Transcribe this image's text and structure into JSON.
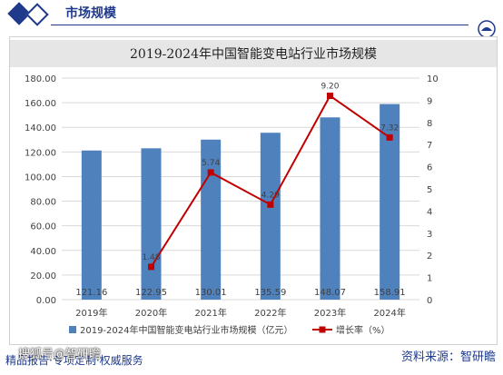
{
  "header": {
    "title": "市场规模"
  },
  "chart_data": {
    "type": "bar",
    "title": "2019-2024年中国智能变电站行业市场规模",
    "categories": [
      "2019年",
      "2020年",
      "2021年",
      "2022年",
      "2023年",
      "2024年"
    ],
    "series": [
      {
        "name": "2019-2024年中国智能变电站行业市场规模（亿元）",
        "type": "bar",
        "axis": "left",
        "values": [
          121.16,
          122.95,
          130.01,
          135.59,
          148.07,
          158.91
        ],
        "labels": [
          "121.16",
          "122.95",
          "130.01",
          "135.59",
          "148.07",
          "158.91"
        ],
        "color": "#4f81bd"
      },
      {
        "name": "增长率（%）",
        "type": "line",
        "axis": "right",
        "values": [
          null,
          1.48,
          5.74,
          4.29,
          9.2,
          7.32
        ],
        "labels": [
          "",
          "1.48",
          "5.74",
          "4.29",
          "9.20",
          "7.32"
        ],
        "color": "#c00000"
      }
    ],
    "y_left": {
      "ylim": [
        0,
        180
      ],
      "ticks": [
        "0.00",
        "20.00",
        "40.00",
        "60.00",
        "80.00",
        "100.00",
        "120.00",
        "140.00",
        "160.00",
        "180.00"
      ]
    },
    "y_right": {
      "ylim": [
        0,
        10
      ],
      "ticks": [
        "0",
        "1",
        "2",
        "3",
        "4",
        "5",
        "6",
        "7",
        "8",
        "9",
        "10"
      ]
    },
    "grid": true,
    "legend": "bottom"
  },
  "footer": {
    "left_text": "精品报告·专项定制·权威服务",
    "watermark": "搜狐号@智研瞻",
    "source": "资料来源：智研瞻"
  }
}
